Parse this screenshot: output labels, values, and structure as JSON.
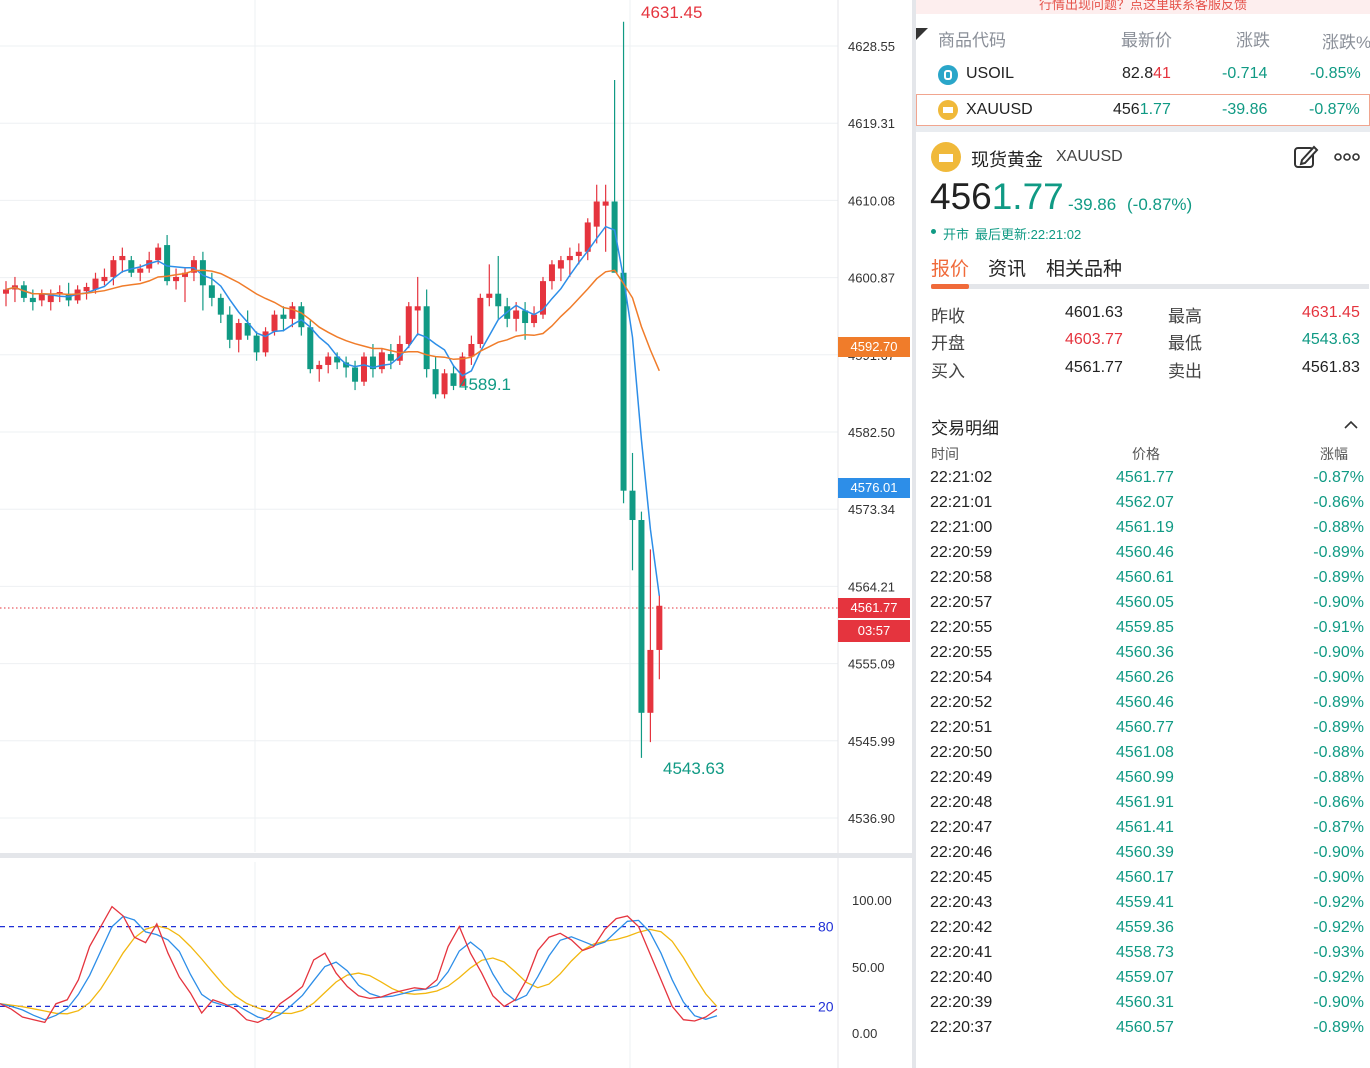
{
  "chart": {
    "price_axis_labels": [
      "4628.55",
      "4619.31",
      "4610.08",
      "4600.87",
      "4591.67",
      "4582.50",
      "4573.34",
      "4564.21",
      "4555.09",
      "4545.99",
      "4536.90"
    ],
    "oscillator_axis_labels": [
      "100.00",
      "50.00",
      "0.00"
    ],
    "oscillator_levels": [
      "80",
      "20"
    ],
    "annotations": {
      "high": "4631.45",
      "low": "4543.63",
      "swing_low": "4589.1"
    },
    "tags": {
      "ma_orange": "4592.70",
      "ma_blue": "4576.01",
      "last_price": "4561.77",
      "countdown": "03:57"
    },
    "colors": {
      "up": "#e5343e",
      "down": "#109a84",
      "ma_slow": "#f07c2a",
      "ma_fast": "#2d8ee8",
      "level_line": "#1f2fd6"
    }
  },
  "panel": {
    "notice": "行情出现问题？点这里联系客服反馈",
    "watchlist": {
      "headers": {
        "code": "商品代码",
        "last": "最新价",
        "change": "涨跌",
        "change_pct": "涨跌%"
      },
      "rows": [
        {
          "symbol": "USOIL",
          "last_a": "82.8",
          "last_b": "41",
          "change": "-0.714",
          "change_pct": "-0.85%",
          "icon": "oil-drop-icon"
        },
        {
          "symbol": "XAUUSD",
          "last_a": "456",
          "last_b": "1.77",
          "change": "-39.86",
          "change_pct": "-0.87%",
          "icon": "gold-bar-icon"
        }
      ]
    },
    "detail": {
      "name": "现货黄金",
      "symbol": "XAUUSD",
      "price_a": "456",
      "price_b": "1.77",
      "change": "-39.86",
      "change_pct": "(-0.87%)",
      "status": "开市",
      "last_update": "最后更新:22:21:02",
      "tabs": [
        "报价",
        "资讯",
        "相关品种"
      ],
      "quote": {
        "prev_close_label": "昨收",
        "prev_close": "4601.63",
        "high_label": "最高",
        "high": "4631.45",
        "open_label": "开盘",
        "open": "4603.77",
        "low_label": "最低",
        "low": "4543.63",
        "bid_label": "买入",
        "bid": "4561.77",
        "ask_label": "卖出",
        "ask": "4561.83"
      }
    },
    "trades": {
      "title": "交易明细",
      "headers": {
        "time": "时间",
        "price": "价格",
        "change": "涨幅"
      },
      "rows": [
        [
          "22:21:02",
          "4561.77",
          "-0.87%"
        ],
        [
          "22:21:01",
          "4562.07",
          "-0.86%"
        ],
        [
          "22:21:00",
          "4561.19",
          "-0.88%"
        ],
        [
          "22:20:59",
          "4560.46",
          "-0.89%"
        ],
        [
          "22:20:58",
          "4560.61",
          "-0.89%"
        ],
        [
          "22:20:57",
          "4560.05",
          "-0.90%"
        ],
        [
          "22:20:55",
          "4559.85",
          "-0.91%"
        ],
        [
          "22:20:55",
          "4560.36",
          "-0.90%"
        ],
        [
          "22:20:54",
          "4560.26",
          "-0.90%"
        ],
        [
          "22:20:52",
          "4560.46",
          "-0.89%"
        ],
        [
          "22:20:51",
          "4560.77",
          "-0.89%"
        ],
        [
          "22:20:50",
          "4561.08",
          "-0.88%"
        ],
        [
          "22:20:49",
          "4560.99",
          "-0.88%"
        ],
        [
          "22:20:48",
          "4561.91",
          "-0.86%"
        ],
        [
          "22:20:47",
          "4561.41",
          "-0.87%"
        ],
        [
          "22:20:46",
          "4560.39",
          "-0.90%"
        ],
        [
          "22:20:45",
          "4560.17",
          "-0.90%"
        ],
        [
          "22:20:43",
          "4559.41",
          "-0.92%"
        ],
        [
          "22:20:42",
          "4559.36",
          "-0.92%"
        ],
        [
          "22:20:41",
          "4558.73",
          "-0.93%"
        ],
        [
          "22:20:40",
          "4559.07",
          "-0.92%"
        ],
        [
          "22:20:39",
          "4560.31",
          "-0.90%"
        ],
        [
          "22:20:37",
          "4560.57",
          "-0.89%"
        ]
      ]
    }
  }
}
